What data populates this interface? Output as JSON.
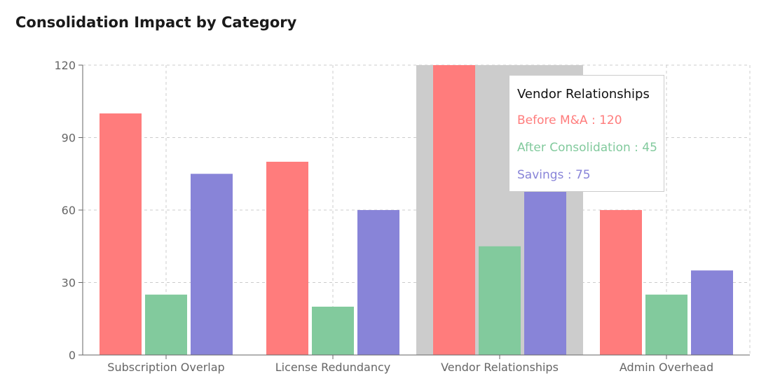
{
  "title": "Consolidation Impact by Category",
  "chart_data": {
    "type": "bar",
    "categories": [
      "Subscription Overlap",
      "License Redundancy",
      "Vendor Relationships",
      "Admin Overhead"
    ],
    "series": [
      {
        "name": "Before M&A",
        "values": [
          100,
          80,
          120,
          60
        ],
        "color": "#ff7c7c"
      },
      {
        "name": "After Consolidation",
        "values": [
          25,
          20,
          45,
          25
        ],
        "color": "#82ca9d"
      },
      {
        "name": "Savings",
        "values": [
          75,
          60,
          75,
          35
        ],
        "color": "#8884d8"
      }
    ],
    "ylim": [
      0,
      120
    ],
    "yticks": [
      0,
      30,
      60,
      90,
      120
    ],
    "grid": true,
    "highlighted_category": "Vendor Relationships"
  },
  "tooltip": {
    "title": "Vendor Relationships",
    "rows": [
      {
        "text": "Before M&A : 120",
        "color": "#ff7c7c"
      },
      {
        "text": "After Consolidation : 45",
        "color": "#82ca9d"
      },
      {
        "text": "Savings : 75",
        "color": "#8884d8"
      }
    ]
  }
}
